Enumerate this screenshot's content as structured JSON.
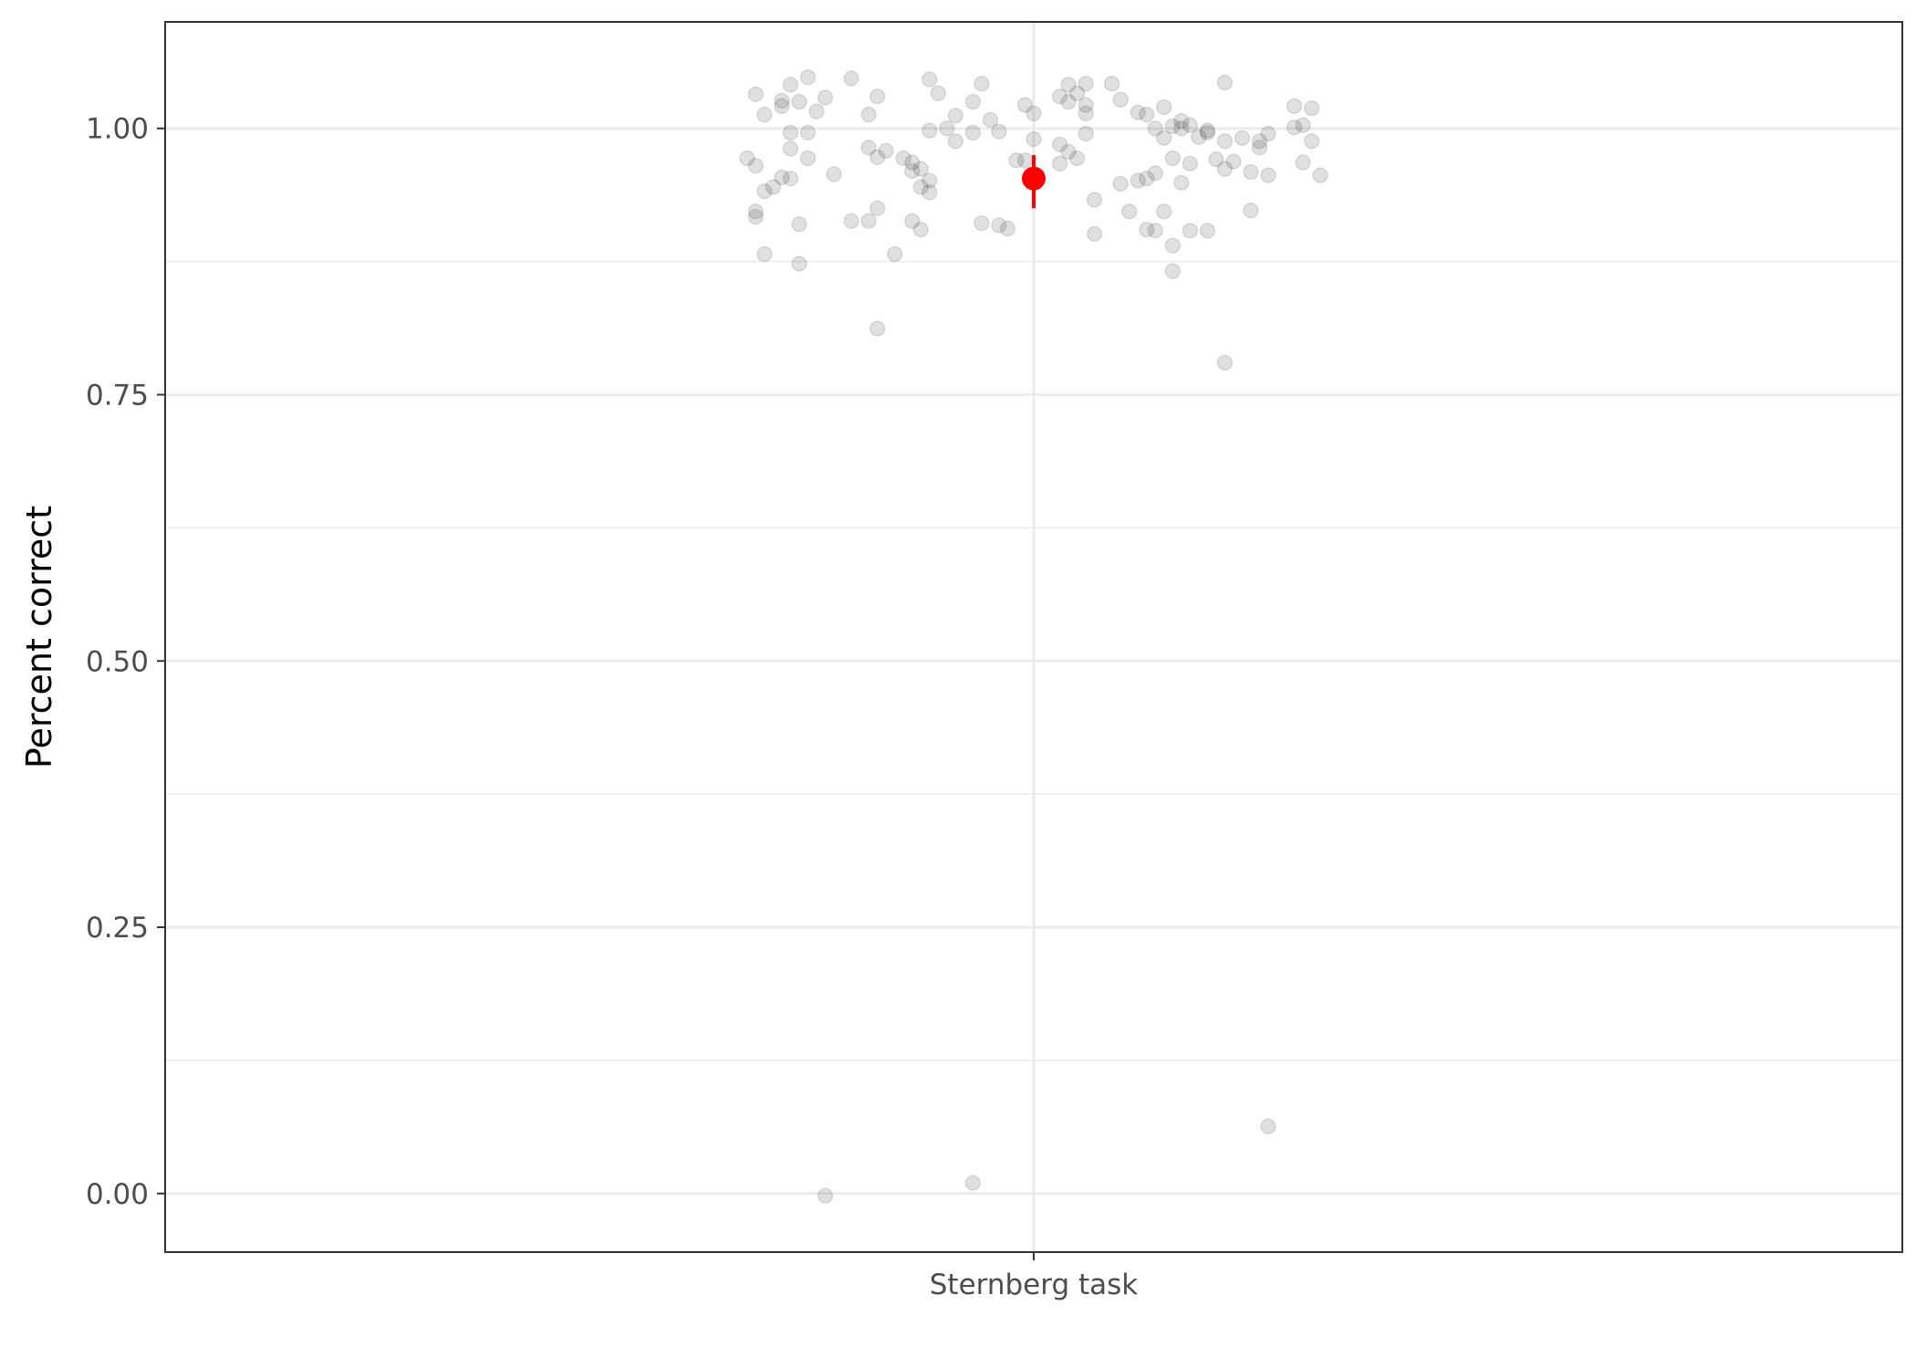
{
  "chart_data": {
    "type": "scatter",
    "title": "",
    "xlabel": "",
    "ylabel": "Percent correct",
    "categories": [
      "Sternberg task"
    ],
    "ylim": [
      -0.055,
      1.1
    ],
    "yticks": [
      0.0,
      0.25,
      0.5,
      0.75,
      1.0
    ],
    "ytick_labels": [
      "0.00",
      "0.25",
      "0.50",
      "0.75",
      "1.00"
    ],
    "grid": true,
    "legend": "none",
    "point_color": "#000000",
    "point_opacity": 0.12,
    "summary_color": "#ff0000",
    "summary": {
      "category": "Sternberg task",
      "mean": 0.953,
      "lower": 0.925,
      "upper": 0.975
    },
    "points": [
      [
        -0.33,
        0.972
      ],
      [
        -0.32,
        0.922
      ],
      [
        -0.32,
        0.917
      ],
      [
        -0.32,
        0.965
      ],
      [
        -0.32,
        1.032
      ],
      [
        -0.31,
        1.013
      ],
      [
        -0.31,
        0.941
      ],
      [
        -0.31,
        0.882
      ],
      [
        -0.3,
        0.945
      ],
      [
        -0.29,
        1.021
      ],
      [
        -0.29,
        0.954
      ],
      [
        -0.29,
        1.026
      ],
      [
        -0.28,
        0.996
      ],
      [
        -0.28,
        0.981
      ],
      [
        -0.28,
        0.953
      ],
      [
        -0.28,
        1.041
      ],
      [
        -0.27,
        0.873
      ],
      [
        -0.27,
        0.91
      ],
      [
        -0.27,
        1.025
      ],
      [
        -0.26,
        1.048
      ],
      [
        -0.26,
        0.972
      ],
      [
        -0.26,
        0.996
      ],
      [
        -0.25,
        1.016
      ],
      [
        -0.24,
        -0.002
      ],
      [
        -0.24,
        1.029
      ],
      [
        -0.23,
        0.957
      ],
      [
        -0.21,
        0.913
      ],
      [
        -0.21,
        1.047
      ],
      [
        -0.19,
        0.913
      ],
      [
        -0.19,
        1.013
      ],
      [
        -0.19,
        0.982
      ],
      [
        -0.18,
        0.973
      ],
      [
        -0.18,
        0.812
      ],
      [
        -0.18,
        1.03
      ],
      [
        -0.18,
        0.925
      ],
      [
        -0.17,
        0.979
      ],
      [
        -0.16,
        0.882
      ],
      [
        -0.15,
        0.972
      ],
      [
        -0.14,
        0.968
      ],
      [
        -0.14,
        0.96
      ],
      [
        -0.14,
        0.913
      ],
      [
        -0.13,
        0.945
      ],
      [
        -0.13,
        0.962
      ],
      [
        -0.13,
        0.905
      ],
      [
        -0.12,
        1.046
      ],
      [
        -0.12,
        0.951
      ],
      [
        -0.12,
        0.94
      ],
      [
        -0.12,
        0.998
      ],
      [
        -0.11,
        1.033
      ],
      [
        -0.1,
        1.0
      ],
      [
        -0.09,
        0.988
      ],
      [
        -0.09,
        1.012
      ],
      [
        -0.07,
        1.025
      ],
      [
        -0.07,
        0.996
      ],
      [
        -0.07,
        0.01
      ],
      [
        -0.06,
        0.911
      ],
      [
        -0.06,
        1.042
      ],
      [
        -0.05,
        1.008
      ],
      [
        -0.04,
        0.997
      ],
      [
        -0.04,
        0.909
      ],
      [
        -0.03,
        0.906
      ],
      [
        -0.02,
        0.97
      ],
      [
        -0.01,
        1.022
      ],
      [
        -0.01,
        0.97
      ],
      [
        0.0,
        1.014
      ],
      [
        0.0,
        0.99
      ],
      [
        0.03,
        1.03
      ],
      [
        0.03,
        0.985
      ],
      [
        0.03,
        0.967
      ],
      [
        0.04,
        0.978
      ],
      [
        0.04,
        1.041
      ],
      [
        0.04,
        1.025
      ],
      [
        0.05,
        1.033
      ],
      [
        0.05,
        0.972
      ],
      [
        0.06,
        1.022
      ],
      [
        0.06,
        1.014
      ],
      [
        0.06,
        0.995
      ],
      [
        0.06,
        1.042
      ],
      [
        0.07,
        0.933
      ],
      [
        0.07,
        0.901
      ],
      [
        0.09,
        1.042
      ],
      [
        0.1,
        0.948
      ],
      [
        0.1,
        1.027
      ],
      [
        0.11,
        0.922
      ],
      [
        0.12,
        0.951
      ],
      [
        0.12,
        1.015
      ],
      [
        0.13,
        0.953
      ],
      [
        0.13,
        1.013
      ],
      [
        0.13,
        0.905
      ],
      [
        0.14,
        0.958
      ],
      [
        0.14,
        0.904
      ],
      [
        0.14,
        1.0
      ],
      [
        0.15,
        1.02
      ],
      [
        0.15,
        0.991
      ],
      [
        0.15,
        0.922
      ],
      [
        0.16,
        0.89
      ],
      [
        0.16,
        0.866
      ],
      [
        0.16,
        1.002
      ],
      [
        0.16,
        0.972
      ],
      [
        0.17,
        1.007
      ],
      [
        0.17,
        0.949
      ],
      [
        0.17,
        1.0
      ],
      [
        0.18,
        1.003
      ],
      [
        0.18,
        0.967
      ],
      [
        0.18,
        0.904
      ],
      [
        0.19,
        0.992
      ],
      [
        0.2,
        0.998
      ],
      [
        0.2,
        0.996
      ],
      [
        0.2,
        0.904
      ],
      [
        0.21,
        0.971
      ],
      [
        0.22,
        1.043
      ],
      [
        0.22,
        0.962
      ],
      [
        0.22,
        0.988
      ],
      [
        0.22,
        0.78
      ],
      [
        0.23,
        0.969
      ],
      [
        0.24,
        0.991
      ],
      [
        0.25,
        0.959
      ],
      [
        0.25,
        0.923
      ],
      [
        0.26,
        0.988
      ],
      [
        0.26,
        0.982
      ],
      [
        0.27,
        0.956
      ],
      [
        0.27,
        0.063
      ],
      [
        0.27,
        0.995
      ],
      [
        0.3,
        1.001
      ],
      [
        0.3,
        1.021
      ],
      [
        0.31,
        1.003
      ],
      [
        0.31,
        0.968
      ],
      [
        0.32,
        0.988
      ],
      [
        0.32,
        1.019
      ],
      [
        0.33,
        0.956
      ]
    ]
  }
}
